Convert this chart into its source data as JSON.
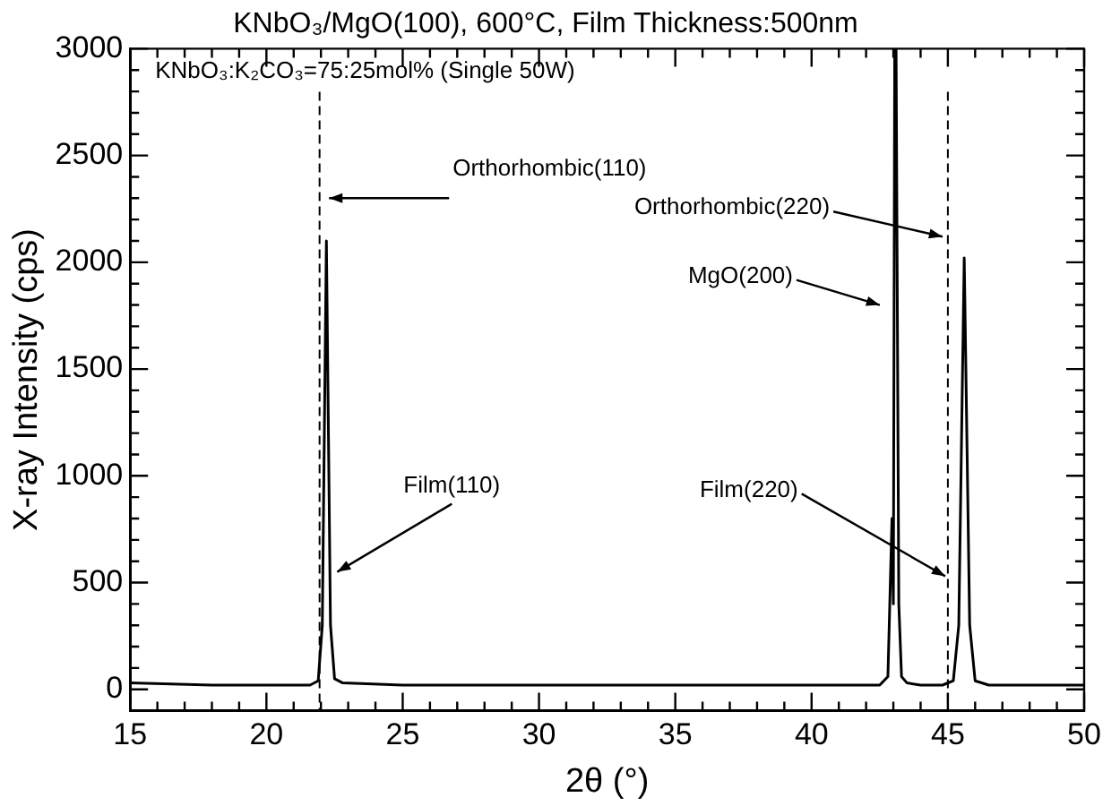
{
  "chart_data": {
    "type": "line",
    "title": "KNbO₃/MgO(100), 600°C, Film Thickness:500nm",
    "xlabel": "2θ (°)",
    "ylabel": "X-ray Intensity (cps)",
    "x": [
      15,
      18,
      20,
      21.6,
      21.9,
      22.05,
      22.2,
      22.35,
      22.5,
      22.8,
      25,
      28,
      30,
      33,
      35,
      38,
      40,
      42.5,
      42.8,
      42.95,
      43.0,
      43.05,
      43.1,
      43.2,
      43.3,
      43.5,
      44,
      44.8,
      45.2,
      45.4,
      45.6,
      45.8,
      46.0,
      46.5,
      48,
      50
    ],
    "series": [
      {
        "color": "#000000",
        "values": [
          30,
          20,
          20,
          20,
          40,
          300,
          2100,
          300,
          50,
          30,
          20,
          20,
          20,
          20,
          20,
          20,
          20,
          20,
          60,
          800,
          400,
          3000,
          3000,
          400,
          60,
          30,
          20,
          20,
          40,
          300,
          2020,
          300,
          40,
          20,
          20,
          20
        ]
      }
    ],
    "xlim": [
      15,
      50
    ],
    "ylim": [
      -100,
      3000
    ],
    "xticks": [
      15,
      {
        "value": 16,
        "label": null
      },
      {
        "value": 17,
        "label": null
      },
      {
        "value": 18,
        "label": null
      },
      {
        "value": 19,
        "label": null
      },
      20,
      {
        "value": 21,
        "label": null
      },
      {
        "value": 22,
        "label": null
      },
      {
        "value": 23,
        "label": null
      },
      {
        "value": 24,
        "label": null
      },
      25,
      {
        "value": 26,
        "label": null
      },
      {
        "value": 27,
        "label": null
      },
      {
        "value": 28,
        "label": null
      },
      {
        "value": 29,
        "label": null
      },
      30,
      {
        "value": 31,
        "label": null
      },
      {
        "value": 32,
        "label": null
      },
      {
        "value": 33,
        "label": null
      },
      {
        "value": 34,
        "label": null
      },
      35,
      {
        "value": 36,
        "label": null
      },
      {
        "value": 37,
        "label": null
      },
      {
        "value": 38,
        "label": null
      },
      {
        "value": 39,
        "label": null
      },
      40,
      {
        "value": 41,
        "label": null
      },
      {
        "value": 42,
        "label": null
      },
      {
        "value": 43,
        "label": null
      },
      {
        "value": 44,
        "label": null
      },
      45,
      {
        "value": 46,
        "label": null
      },
      {
        "value": 47,
        "label": null
      },
      {
        "value": 48,
        "label": null
      },
      {
        "value": 49,
        "label": null
      },
      50
    ],
    "yticks": [
      0,
      {
        "value": 100,
        "label": null
      },
      {
        "value": 200,
        "label": null
      },
      {
        "value": 300,
        "label": null
      },
      {
        "value": 400,
        "label": null
      },
      500,
      {
        "value": 600,
        "label": null
      },
      {
        "value": 700,
        "label": null
      },
      {
        "value": 800,
        "label": null
      },
      {
        "value": 900,
        "label": null
      },
      1000,
      {
        "value": 1100,
        "label": null
      },
      {
        "value": 1200,
        "label": null
      },
      {
        "value": 1300,
        "label": null
      },
      {
        "value": 1400,
        "label": null
      },
      1500,
      {
        "value": 1600,
        "label": null
      },
      {
        "value": 1700,
        "label": null
      },
      {
        "value": 1800,
        "label": null
      },
      {
        "value": 1900,
        "label": null
      },
      2000,
      {
        "value": 2100,
        "label": null
      },
      {
        "value": 2200,
        "label": null
      },
      {
        "value": 2300,
        "label": null
      },
      {
        "value": 2400,
        "label": null
      },
      2500,
      {
        "value": 2600,
        "label": null
      },
      {
        "value": 2700,
        "label": null
      },
      {
        "value": 2800,
        "label": null
      },
      {
        "value": 2900,
        "label": null
      },
      3000
    ],
    "ref_lines": [
      {
        "axis": "x",
        "value": 21.95,
        "line_style": "dashed",
        "color": "#000000"
      },
      {
        "axis": "x",
        "value": 45.0,
        "line_style": "dashed",
        "color": "#000000"
      }
    ],
    "annotations": [
      "KNbO₃:K₂CO₃=75:25mol% (Single 50W)",
      {
        "text": "Orthorhombic(110)",
        "x": 22.1,
        "y": 2300
      },
      {
        "text": "Film(110)",
        "x": 22.4,
        "y": 550
      },
      {
        "text": "Orthorhombic(220)",
        "x": 45.0,
        "y": 2120
      },
      {
        "text": "MgO(200)",
        "x": 42.7,
        "y": 1800
      },
      {
        "text": "Film(220)",
        "x": 45.1,
        "y": 530
      }
    ],
    "grid": false,
    "legend": false,
    "marker": "none",
    "line_style": "solid"
  }
}
